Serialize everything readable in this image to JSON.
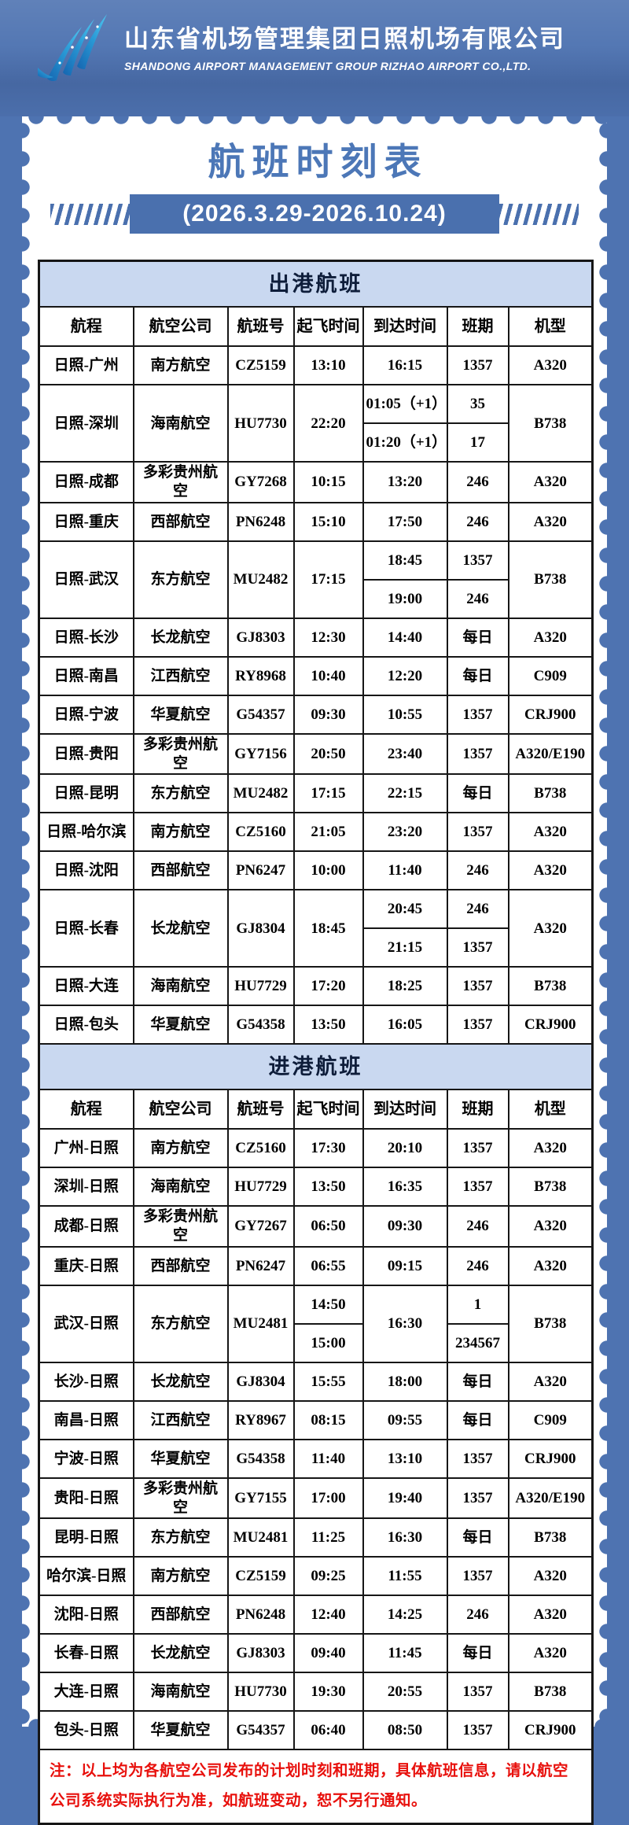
{
  "colors": {
    "background_blue": "#4e73b1",
    "banner_blue": "#4a70ae",
    "section_blue": "#c9d8f0",
    "title_blue": "#4c77b7",
    "note_red": "#e8100c",
    "logo_blue_light": "#35b6e8",
    "logo_blue_dark": "#1565b0"
  },
  "header": {
    "company_cn": "山东省机场管理集团日照机场有限公司",
    "company_en": "SHANDONG AIRPORT MANAGEMENT GROUP RIZHAO AIRPORT CO.,LTD."
  },
  "title": "航班时刻表",
  "date_range": "(2026.3.29-2026.10.24)",
  "table": {
    "columns": [
      "航程",
      "航空公司",
      "航班号",
      "起飞时间",
      "到达时间",
      "班期",
      "机型"
    ],
    "column_names": [
      "route",
      "airline",
      "flight-no",
      "departure-time",
      "arrival-time",
      "days",
      "aircraft"
    ],
    "sections": [
      {
        "name": "出港航班",
        "rows": [
          [
            [
              {
                "t": "日照-广州"
              },
              {
                "t": "南方航空"
              },
              {
                "t": "CZ5159"
              },
              {
                "t": "13:10"
              },
              {
                "t": "16:15"
              },
              {
                "t": "1357"
              },
              {
                "t": "A320"
              }
            ]
          ],
          [
            [
              {
                "t": "日照-深圳",
                "rs": 2
              },
              {
                "t": "海南航空",
                "rs": 2
              },
              {
                "t": "HU7730",
                "rs": 2
              },
              {
                "t": "22:20",
                "rs": 2
              },
              {
                "t": "01:05（+1）"
              },
              {
                "t": "35"
              },
              {
                "t": "B738",
                "rs": 2
              }
            ],
            [
              {
                "t": "01:20（+1）"
              },
              {
                "t": "17"
              }
            ]
          ],
          [
            [
              {
                "t": "日照-成都"
              },
              {
                "t": "多彩贵州航空"
              },
              {
                "t": "GY7268"
              },
              {
                "t": "10:15"
              },
              {
                "t": "13:20"
              },
              {
                "t": "246"
              },
              {
                "t": "A320"
              }
            ]
          ],
          [
            [
              {
                "t": "日照-重庆"
              },
              {
                "t": "西部航空"
              },
              {
                "t": "PN6248"
              },
              {
                "t": "15:10"
              },
              {
                "t": "17:50"
              },
              {
                "t": "246"
              },
              {
                "t": "A320"
              }
            ]
          ],
          [
            [
              {
                "t": "日照-武汉",
                "rs": 2
              },
              {
                "t": "东方航空",
                "rs": 2
              },
              {
                "t": "MU2482",
                "rs": 2
              },
              {
                "t": "17:15",
                "rs": 2
              },
              {
                "t": "18:45"
              },
              {
                "t": "1357"
              },
              {
                "t": "B738",
                "rs": 2
              }
            ],
            [
              {
                "t": "19:00"
              },
              {
                "t": "246"
              }
            ]
          ],
          [
            [
              {
                "t": "日照-长沙"
              },
              {
                "t": "长龙航空"
              },
              {
                "t": "GJ8303"
              },
              {
                "t": "12:30"
              },
              {
                "t": "14:40"
              },
              {
                "t": "每日"
              },
              {
                "t": "A320"
              }
            ]
          ],
          [
            [
              {
                "t": "日照-南昌"
              },
              {
                "t": "江西航空"
              },
              {
                "t": "RY8968"
              },
              {
                "t": "10:40"
              },
              {
                "t": "12:20"
              },
              {
                "t": "每日"
              },
              {
                "t": "C909"
              }
            ]
          ],
          [
            [
              {
                "t": "日照-宁波"
              },
              {
                "t": "华夏航空"
              },
              {
                "t": "G54357"
              },
              {
                "t": "09:30"
              },
              {
                "t": "10:55"
              },
              {
                "t": "1357"
              },
              {
                "t": "CRJ900"
              }
            ]
          ],
          [
            [
              {
                "t": "日照-贵阳"
              },
              {
                "t": "多彩贵州航空"
              },
              {
                "t": "GY7156"
              },
              {
                "t": "20:50"
              },
              {
                "t": "23:40"
              },
              {
                "t": "1357"
              },
              {
                "t": "A320/E190"
              }
            ]
          ],
          [
            [
              {
                "t": "日照-昆明"
              },
              {
                "t": "东方航空"
              },
              {
                "t": "MU2482"
              },
              {
                "t": "17:15"
              },
              {
                "t": "22:15"
              },
              {
                "t": "每日"
              },
              {
                "t": "B738"
              }
            ]
          ],
          [
            [
              {
                "t": "日照-哈尔滨"
              },
              {
                "t": "南方航空"
              },
              {
                "t": "CZ5160"
              },
              {
                "t": "21:05"
              },
              {
                "t": "23:20"
              },
              {
                "t": "1357"
              },
              {
                "t": "A320"
              }
            ]
          ],
          [
            [
              {
                "t": "日照-沈阳"
              },
              {
                "t": "西部航空"
              },
              {
                "t": "PN6247"
              },
              {
                "t": "10:00"
              },
              {
                "t": "11:40"
              },
              {
                "t": "246"
              },
              {
                "t": "A320"
              }
            ]
          ],
          [
            [
              {
                "t": "日照-长春",
                "rs": 2
              },
              {
                "t": "长龙航空",
                "rs": 2
              },
              {
                "t": "GJ8304",
                "rs": 2
              },
              {
                "t": "18:45",
                "rs": 2
              },
              {
                "t": "20:45"
              },
              {
                "t": "246"
              },
              {
                "t": "A320",
                "rs": 2
              }
            ],
            [
              {
                "t": "21:15"
              },
              {
                "t": "1357"
              }
            ]
          ],
          [
            [
              {
                "t": "日照-大连"
              },
              {
                "t": "海南航空"
              },
              {
                "t": "HU7729"
              },
              {
                "t": "17:20"
              },
              {
                "t": "18:25"
              },
              {
                "t": "1357"
              },
              {
                "t": "B738"
              }
            ]
          ],
          [
            [
              {
                "t": "日照-包头"
              },
              {
                "t": "华夏航空"
              },
              {
                "t": "G54358"
              },
              {
                "t": "13:50"
              },
              {
                "t": "16:05"
              },
              {
                "t": "1357"
              },
              {
                "t": "CRJ900"
              }
            ]
          ]
        ]
      },
      {
        "name": "进港航班",
        "rows": [
          [
            [
              {
                "t": "广州-日照"
              },
              {
                "t": "南方航空"
              },
              {
                "t": "CZ5160"
              },
              {
                "t": "17:30"
              },
              {
                "t": "20:10"
              },
              {
                "t": "1357"
              },
              {
                "t": "A320"
              }
            ]
          ],
          [
            [
              {
                "t": "深圳-日照"
              },
              {
                "t": "海南航空"
              },
              {
                "t": "HU7729"
              },
              {
                "t": "13:50"
              },
              {
                "t": "16:35"
              },
              {
                "t": "1357"
              },
              {
                "t": "B738"
              }
            ]
          ],
          [
            [
              {
                "t": "成都-日照"
              },
              {
                "t": "多彩贵州航空"
              },
              {
                "t": "GY7267"
              },
              {
                "t": "06:50"
              },
              {
                "t": "09:30"
              },
              {
                "t": "246"
              },
              {
                "t": "A320"
              }
            ]
          ],
          [
            [
              {
                "t": "重庆-日照"
              },
              {
                "t": "西部航空"
              },
              {
                "t": "PN6247"
              },
              {
                "t": "06:55"
              },
              {
                "t": "09:15"
              },
              {
                "t": "246"
              },
              {
                "t": "A320"
              }
            ]
          ],
          [
            [
              {
                "t": "武汉-日照",
                "rs": 2
              },
              {
                "t": "东方航空",
                "rs": 2
              },
              {
                "t": "MU2481",
                "rs": 2
              },
              {
                "t": "14:50"
              },
              {
                "t": "16:30",
                "rs": 2
              },
              {
                "t": "1"
              },
              {
                "t": "B738",
                "rs": 2
              }
            ],
            [
              {
                "t": "15:00"
              },
              {
                "t": "234567"
              }
            ]
          ],
          [
            [
              {
                "t": "长沙-日照"
              },
              {
                "t": "长龙航空"
              },
              {
                "t": "GJ8304"
              },
              {
                "t": "15:55"
              },
              {
                "t": "18:00"
              },
              {
                "t": "每日"
              },
              {
                "t": "A320"
              }
            ]
          ],
          [
            [
              {
                "t": "南昌-日照"
              },
              {
                "t": "江西航空"
              },
              {
                "t": "RY8967"
              },
              {
                "t": "08:15"
              },
              {
                "t": "09:55"
              },
              {
                "t": "每日"
              },
              {
                "t": "C909"
              }
            ]
          ],
          [
            [
              {
                "t": "宁波-日照"
              },
              {
                "t": "华夏航空"
              },
              {
                "t": "G54358"
              },
              {
                "t": "11:40"
              },
              {
                "t": "13:10"
              },
              {
                "t": "1357"
              },
              {
                "t": "CRJ900"
              }
            ]
          ],
          [
            [
              {
                "t": "贵阳-日照"
              },
              {
                "t": "多彩贵州航空"
              },
              {
                "t": "GY7155"
              },
              {
                "t": "17:00"
              },
              {
                "t": "19:40"
              },
              {
                "t": "1357"
              },
              {
                "t": "A320/E190"
              }
            ]
          ],
          [
            [
              {
                "t": "昆明-日照"
              },
              {
                "t": "东方航空"
              },
              {
                "t": "MU2481"
              },
              {
                "t": "11:25"
              },
              {
                "t": "16:30"
              },
              {
                "t": "每日"
              },
              {
                "t": "B738"
              }
            ]
          ],
          [
            [
              {
                "t": "哈尔滨-日照"
              },
              {
                "t": "南方航空"
              },
              {
                "t": "CZ5159"
              },
              {
                "t": "09:25"
              },
              {
                "t": "11:55"
              },
              {
                "t": "1357"
              },
              {
                "t": "A320"
              }
            ]
          ],
          [
            [
              {
                "t": "沈阳-日照"
              },
              {
                "t": "西部航空"
              },
              {
                "t": "PN6248"
              },
              {
                "t": "12:40"
              },
              {
                "t": "14:25"
              },
              {
                "t": "246"
              },
              {
                "t": "A320"
              }
            ]
          ],
          [
            [
              {
                "t": "长春-日照"
              },
              {
                "t": "长龙航空"
              },
              {
                "t": "GJ8303"
              },
              {
                "t": "09:40"
              },
              {
                "t": "11:45"
              },
              {
                "t": "每日"
              },
              {
                "t": "A320"
              }
            ]
          ],
          [
            [
              {
                "t": "大连-日照"
              },
              {
                "t": "海南航空"
              },
              {
                "t": "HU7730"
              },
              {
                "t": "19:30"
              },
              {
                "t": "20:55"
              },
              {
                "t": "1357"
              },
              {
                "t": "B738"
              }
            ]
          ],
          [
            [
              {
                "t": "包头-日照"
              },
              {
                "t": "华夏航空"
              },
              {
                "t": "G54357"
              },
              {
                "t": "06:40"
              },
              {
                "t": "08:50"
              },
              {
                "t": "1357"
              },
              {
                "t": "CRJ900"
              }
            ]
          ]
        ]
      }
    ],
    "note": "注：以上均为各航空公司发布的计划时刻和班期，具体航班信息，请以航空公司系统实际执行为准，如航班变动，恕不另行通知。"
  }
}
